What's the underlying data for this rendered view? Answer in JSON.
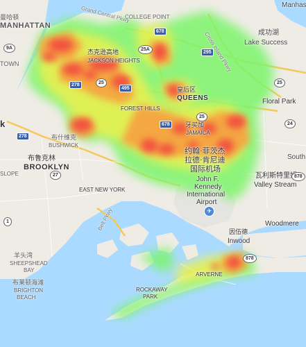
{
  "labels": {
    "manhattan_cjk": "曼哈頓",
    "manhattan": "MANHATTAN",
    "town": "TOWN",
    "york": "k",
    "jackson_heights_cjk": "杰克逊高地",
    "jackson_heights": "JACKSON HEIGHTS",
    "college_point": "COLLEGE POINT",
    "cross_island": "Cross Island Pkwy",
    "lake_success_cjk": "成功湖",
    "lake_success": "Lake Success",
    "manhasset": "Manhasse",
    "queens_cjk": "皇后区",
    "queens": "QUEENS",
    "forest_hills": "FOREST HILLS",
    "floral_park": "Floral Park",
    "jamaica_cjk": "牙买加",
    "jamaica": "JAMAICA",
    "bushwick_cjk": "布什维克",
    "bushwick": "BUSHWICK",
    "brooklyn_cjk": "布鲁克林",
    "brooklyn": "BROOKLYN",
    "slope": "SLOPE",
    "east_new_york": "EAST NEW YORK",
    "belt_pkwy": "Belt Pkwy",
    "jfk_cjk_1": "约翰·菲茨杰",
    "jfk_cjk_2": "拉德·肯尼迪",
    "jfk_cjk_3": "国际机场",
    "jfk_1": "John F.",
    "jfk_2": "Kennedy",
    "jfk_3": "International",
    "jfk_4": "Airport",
    "south": "South",
    "valley_stream_cjk": "瓦利斯特里姆",
    "valley_stream": "Valley Stream",
    "woodmere": "Woodmere",
    "inwood_cjk": "因伍德",
    "inwood": "Inwood",
    "sheepshead_cjk": "羊头湾",
    "sheepshead": "SHEEPSHEAD",
    "bay": "BAY",
    "brighton_cjk": "布莱顿海滩",
    "brighton": "BRIGHTON",
    "beach": "BEACH",
    "arverne": "ARVERNE",
    "rockaway": "ROCKAWAY",
    "park": "PARK",
    "grand_central": "Grand Central Pkwy"
  },
  "shields": {
    "s678a": "678",
    "s25a": "25A",
    "s295": "295",
    "s278a": "278",
    "s25": "25",
    "s495": "495",
    "s25b": "25",
    "s678b": "678",
    "s278b": "278",
    "s27": "27",
    "s878": "878",
    "s24": "24",
    "s25c": "25",
    "s878b": "878",
    "s1": "1",
    "s9a": "9A"
  }
}
